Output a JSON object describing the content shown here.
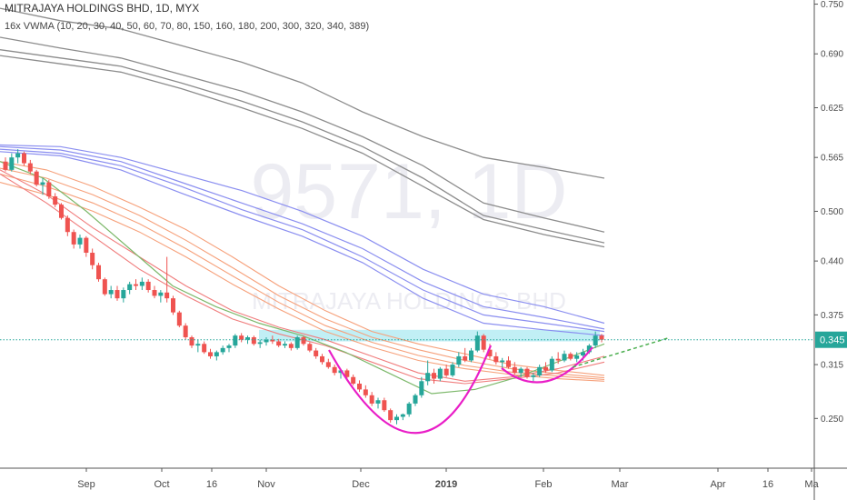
{
  "header": {
    "symbol_title": "MITRAJAYA HOLDINGS BHD, 1D, MYX",
    "indicator": "16x VWMA (10, 20, 30, 40, 50, 60, 70, 80, 150, 160, 180, 200, 300, 320, 340, 389)"
  },
  "watermark": {
    "ticker": "9571, 1D",
    "name": "MITRAJAYA HOLDINGS BHD"
  },
  "colors": {
    "up_candle": "#26a69a",
    "down_candle": "#ef5350",
    "price_line": "#26a69a",
    "zone": "#b2ebf2",
    "cup_handle": "#e91ec7",
    "trendline": "#4caf50"
  },
  "chart_data": {
    "type": "candlestick",
    "y_axis": {
      "ticks": [
        "0.250",
        "0.315",
        "0.375",
        "0.440",
        "0.500",
        "0.565",
        "0.625",
        "0.690",
        "0.750"
      ],
      "range": [
        0.19,
        0.755
      ]
    },
    "x_axis": {
      "ticks": [
        "Sep",
        "Oct",
        "16",
        "Nov",
        "Dec",
        "2019",
        "Feb",
        "Mar",
        "Apr",
        "16",
        "Ma"
      ],
      "bold_ticks": [
        "2019"
      ]
    },
    "current_price": "0.345",
    "candles_ohlc": [
      [
        0.56,
        0.565,
        0.548,
        0.55
      ],
      [
        0.55,
        0.57,
        0.548,
        0.565
      ],
      [
        0.565,
        0.575,
        0.558,
        0.57
      ],
      [
        0.57,
        0.572,
        0.555,
        0.558
      ],
      [
        0.558,
        0.562,
        0.545,
        0.548
      ],
      [
        0.548,
        0.55,
        0.53,
        0.532
      ],
      [
        0.532,
        0.54,
        0.52,
        0.535
      ],
      [
        0.535,
        0.538,
        0.515,
        0.518
      ],
      [
        0.518,
        0.522,
        0.505,
        0.508
      ],
      [
        0.508,
        0.51,
        0.49,
        0.492
      ],
      [
        0.492,
        0.495,
        0.47,
        0.475
      ],
      [
        0.475,
        0.478,
        0.455,
        0.46
      ],
      [
        0.46,
        0.472,
        0.455,
        0.468
      ],
      [
        0.468,
        0.47,
        0.445,
        0.45
      ],
      [
        0.45,
        0.455,
        0.43,
        0.435
      ],
      [
        0.435,
        0.438,
        0.415,
        0.418
      ],
      [
        0.418,
        0.42,
        0.398,
        0.4
      ],
      [
        0.4,
        0.41,
        0.395,
        0.405
      ],
      [
        0.405,
        0.41,
        0.392,
        0.395
      ],
      [
        0.395,
        0.408,
        0.39,
        0.405
      ],
      [
        0.405,
        0.415,
        0.4,
        0.412
      ],
      [
        0.412,
        0.418,
        0.405,
        0.41
      ],
      [
        0.41,
        0.42,
        0.405,
        0.415
      ],
      [
        0.415,
        0.418,
        0.402,
        0.405
      ],
      [
        0.405,
        0.41,
        0.395,
        0.398
      ],
      [
        0.398,
        0.405,
        0.39,
        0.402
      ],
      [
        0.402,
        0.445,
        0.39,
        0.395
      ],
      [
        0.395,
        0.398,
        0.375,
        0.378
      ],
      [
        0.378,
        0.38,
        0.36,
        0.362
      ],
      [
        0.362,
        0.365,
        0.345,
        0.348
      ],
      [
        0.348,
        0.35,
        0.335,
        0.338
      ],
      [
        0.338,
        0.345,
        0.33,
        0.34
      ],
      [
        0.34,
        0.343,
        0.328,
        0.33
      ],
      [
        0.33,
        0.334,
        0.322,
        0.325
      ],
      [
        0.325,
        0.332,
        0.32,
        0.33
      ],
      [
        0.33,
        0.338,
        0.327,
        0.335
      ],
      [
        0.335,
        0.34,
        0.33,
        0.338
      ],
      [
        0.338,
        0.352,
        0.335,
        0.35
      ],
      [
        0.35,
        0.353,
        0.342,
        0.345
      ],
      [
        0.345,
        0.35,
        0.34,
        0.348
      ],
      [
        0.348,
        0.35,
        0.338,
        0.34
      ],
      [
        0.34,
        0.345,
        0.335,
        0.342
      ],
      [
        0.342,
        0.348,
        0.338,
        0.345
      ],
      [
        0.345,
        0.35,
        0.34,
        0.343
      ],
      [
        0.343,
        0.346,
        0.336,
        0.338
      ],
      [
        0.338,
        0.343,
        0.335,
        0.34
      ],
      [
        0.34,
        0.342,
        0.332,
        0.335
      ],
      [
        0.335,
        0.35,
        0.333,
        0.348
      ],
      [
        0.348,
        0.35,
        0.338,
        0.34
      ],
      [
        0.34,
        0.342,
        0.33,
        0.332
      ],
      [
        0.332,
        0.335,
        0.322,
        0.325
      ],
      [
        0.325,
        0.328,
        0.315,
        0.318
      ],
      [
        0.318,
        0.322,
        0.31,
        0.312
      ],
      [
        0.312,
        0.315,
        0.302,
        0.305
      ],
      [
        0.305,
        0.31,
        0.298,
        0.308
      ],
      [
        0.308,
        0.31,
        0.298,
        0.3
      ],
      [
        0.3,
        0.303,
        0.29,
        0.292
      ],
      [
        0.292,
        0.296,
        0.282,
        0.285
      ],
      [
        0.285,
        0.29,
        0.275,
        0.278
      ],
      [
        0.278,
        0.282,
        0.265,
        0.268
      ],
      [
        0.268,
        0.275,
        0.262,
        0.272
      ],
      [
        0.272,
        0.275,
        0.258,
        0.26
      ],
      [
        0.26,
        0.262,
        0.245,
        0.248
      ],
      [
        0.248,
        0.255,
        0.243,
        0.252
      ],
      [
        0.252,
        0.256,
        0.248,
        0.255
      ],
      [
        0.255,
        0.27,
        0.252,
        0.268
      ],
      [
        0.268,
        0.28,
        0.265,
        0.278
      ],
      [
        0.278,
        0.3,
        0.275,
        0.295
      ],
      [
        0.295,
        0.32,
        0.29,
        0.305
      ],
      [
        0.305,
        0.31,
        0.292,
        0.298
      ],
      [
        0.298,
        0.312,
        0.295,
        0.31
      ],
      [
        0.31,
        0.315,
        0.3,
        0.302
      ],
      [
        0.302,
        0.318,
        0.3,
        0.315
      ],
      [
        0.315,
        0.33,
        0.312,
        0.325
      ],
      [
        0.325,
        0.335,
        0.318,
        0.32
      ],
      [
        0.32,
        0.335,
        0.318,
        0.332
      ],
      [
        0.332,
        0.355,
        0.33,
        0.35
      ],
      [
        0.35,
        0.352,
        0.33,
        0.333
      ],
      [
        0.333,
        0.34,
        0.322,
        0.325
      ],
      [
        0.325,
        0.33,
        0.315,
        0.318
      ],
      [
        0.318,
        0.323,
        0.31,
        0.32
      ],
      [
        0.32,
        0.325,
        0.31,
        0.312
      ],
      [
        0.312,
        0.318,
        0.303,
        0.305
      ],
      [
        0.305,
        0.312,
        0.3,
        0.31
      ],
      [
        0.31,
        0.312,
        0.298,
        0.3
      ],
      [
        0.3,
        0.305,
        0.295,
        0.302
      ],
      [
        0.302,
        0.315,
        0.3,
        0.312
      ],
      [
        0.312,
        0.318,
        0.305,
        0.308
      ],
      [
        0.308,
        0.325,
        0.306,
        0.322
      ],
      [
        0.322,
        0.33,
        0.316,
        0.32
      ],
      [
        0.32,
        0.332,
        0.318,
        0.328
      ],
      [
        0.328,
        0.33,
        0.32,
        0.322
      ],
      [
        0.322,
        0.33,
        0.318,
        0.326
      ],
      [
        0.326,
        0.334,
        0.32,
        0.33
      ],
      [
        0.33,
        0.34,
        0.328,
        0.338
      ],
      [
        0.338,
        0.355,
        0.335,
        0.35
      ],
      [
        0.35,
        0.352,
        0.342,
        0.345
      ]
    ],
    "vwma_series": {
      "gray": [
        [
          0.745,
          0.73,
          0.72,
          0.7,
          0.68,
          0.655,
          0.62,
          0.59,
          0.565,
          0.553,
          0.54
        ],
        [
          0.71,
          0.697,
          0.685,
          0.665,
          0.645,
          0.62,
          0.59,
          0.555,
          0.51,
          0.492,
          0.475
        ],
        [
          0.695,
          0.685,
          0.675,
          0.655,
          0.633,
          0.608,
          0.578,
          0.54,
          0.495,
          0.478,
          0.462
        ],
        [
          0.688,
          0.678,
          0.668,
          0.648,
          0.625,
          0.6,
          0.57,
          0.53,
          0.49,
          0.472,
          0.457
        ]
      ],
      "blue": [
        [
          0.58,
          0.578,
          0.565,
          0.545,
          0.525,
          0.5,
          0.47,
          0.43,
          0.4,
          0.385,
          0.365
        ],
        [
          0.578,
          0.574,
          0.56,
          0.535,
          0.51,
          0.485,
          0.455,
          0.415,
          0.385,
          0.372,
          0.358
        ],
        [
          0.575,
          0.57,
          0.555,
          0.53,
          0.502,
          0.478,
          0.445,
          0.405,
          0.375,
          0.365,
          0.355
        ],
        [
          0.572,
          0.567,
          0.55,
          0.522,
          0.495,
          0.47,
          0.438,
          0.395,
          0.365,
          0.357,
          0.35
        ]
      ],
      "orange": [
        [
          0.56,
          0.55,
          0.53,
          0.505,
          0.478,
          0.445,
          0.41,
          0.38,
          0.355,
          0.34,
          0.328,
          0.315,
          0.308,
          0.302
        ],
        [
          0.552,
          0.54,
          0.52,
          0.495,
          0.465,
          0.432,
          0.398,
          0.37,
          0.348,
          0.333,
          0.32,
          0.31,
          0.304,
          0.299
        ],
        [
          0.545,
          0.53,
          0.51,
          0.485,
          0.455,
          0.422,
          0.39,
          0.362,
          0.342,
          0.326,
          0.314,
          0.306,
          0.301,
          0.297
        ],
        [
          0.535,
          0.52,
          0.5,
          0.475,
          0.445,
          0.412,
          0.382,
          0.355,
          0.336,
          0.32,
          0.31,
          0.303,
          0.298,
          0.295
        ]
      ],
      "red": [
        [
          0.55,
          0.52,
          0.48,
          0.445,
          0.41,
          0.38,
          0.36,
          0.345,
          0.325,
          0.305,
          0.295,
          0.3,
          0.31,
          0.325
        ],
        [
          0.545,
          0.51,
          0.47,
          0.43,
          0.398,
          0.37,
          0.352,
          0.338,
          0.318,
          0.298,
          0.292,
          0.298,
          0.305,
          0.318
        ]
      ],
      "green": [
        [
          0.56,
          0.54,
          0.5,
          0.455,
          0.41,
          0.385,
          0.365,
          0.35,
          0.33,
          0.305,
          0.28,
          0.285,
          0.3,
          0.32,
          0.34
        ]
      ]
    }
  }
}
